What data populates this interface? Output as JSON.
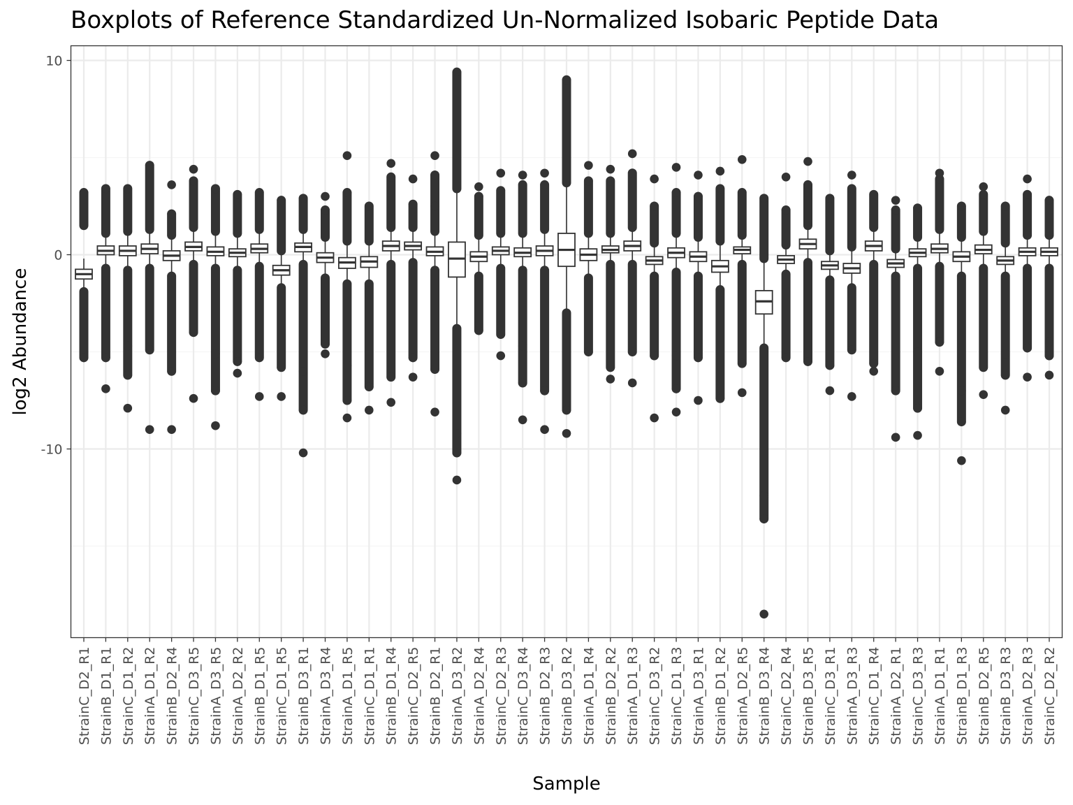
{
  "chart_data": {
    "type": "boxplot",
    "title": "Boxplots of Reference Standardized Un-Normalized Isobaric Peptide Data",
    "xlabel": "Sample",
    "ylabel": "log2 Abundance",
    "ylim": [
      -19.3,
      10.8
    ],
    "yticks": [
      10,
      0,
      -10
    ],
    "ytick_labels": [
      "10",
      "0",
      "-10"
    ],
    "grid": true,
    "legend": "none",
    "colors": {
      "box": "#333333",
      "grid_major": "#ebebeb",
      "grid_minor": "#f5f5f5",
      "panel_border": "#333333",
      "background": "#ffffff"
    },
    "categories": [
      "StrainC_D2_R1",
      "StrainB_D1_R1",
      "StrainC_D1_R2",
      "StrainA_D1_R2",
      "StrainB_D2_R4",
      "StrainC_D3_R5",
      "StrainA_D3_R5",
      "StrainA_D2_R2",
      "StrainB_D1_R5",
      "StrainC_D1_R5",
      "StrainB_D3_R1",
      "StrainA_D3_R4",
      "StrainA_D1_R5",
      "StrainC_D1_R1",
      "StrainB_D1_R4",
      "StrainC_D2_R5",
      "StrainB_D2_R1",
      "StrainA_D3_R2",
      "StrainA_D2_R4",
      "StrainC_D2_R3",
      "StrainC_D3_R4",
      "StrainB_D2_R3",
      "StrainB_D3_R2",
      "StrainA_D1_R4",
      "StrainB_D2_R2",
      "StrainA_D1_R3",
      "StrainC_D3_R2",
      "StrainC_D1_R3",
      "StrainA_D3_R1",
      "StrainB_D1_R2",
      "StrainA_D2_R5",
      "StrainB_D3_R4",
      "StrainC_D2_R4",
      "StrainB_D3_R5",
      "StrainC_D3_R1",
      "StrainA_D3_R3",
      "StrainC_D1_R4",
      "StrainA_D2_R1",
      "StrainC_D3_R3",
      "StrainA_D1_R1",
      "StrainB_D1_R3",
      "StrainB_D2_R5",
      "StrainB_D3_R3",
      "StrainA_D2_R3",
      "StrainC_D2_R2"
    ],
    "boxes": [
      {
        "q1": -1.25,
        "median": -1.0,
        "q3": -0.75,
        "whisker_low": -1.85,
        "whisker_high": -0.2,
        "outlier_high": [
          1.5,
          3.2
        ],
        "outlier_low": [
          -1.9,
          -5.3
        ]
      },
      {
        "q1": 0.0,
        "median": 0.2,
        "q3": 0.45,
        "whisker_low": -0.6,
        "whisker_high": 1.0,
        "outlier_high": [
          1.1,
          3.4
        ],
        "outlier_low": [
          -0.7,
          -5.3,
          -6.9
        ]
      },
      {
        "q1": -0.05,
        "median": 0.2,
        "q3": 0.45,
        "whisker_low": -0.7,
        "whisker_high": 1.1,
        "outlier_high": [
          1.2,
          3.4
        ],
        "outlier_low": [
          -0.8,
          -4.7,
          -6.2,
          -7.9
        ]
      },
      {
        "q1": 0.05,
        "median": 0.3,
        "q3": 0.55,
        "whisker_low": -0.6,
        "whisker_high": 1.2,
        "outlier_high": [
          1.3,
          4.6
        ],
        "outlier_low": [
          -0.7,
          -4.9,
          -9.0
        ]
      },
      {
        "q1": -0.3,
        "median": -0.05,
        "q3": 0.2,
        "whisker_low": -1.0,
        "whisker_high": 0.9,
        "outlier_high": [
          1.0,
          2.1,
          3.6
        ],
        "outlier_low": [
          -1.1,
          -6.0,
          -9.0
        ]
      },
      {
        "q1": 0.2,
        "median": 0.4,
        "q3": 0.65,
        "whisker_low": -0.4,
        "whisker_high": 1.3,
        "outlier_high": [
          1.4,
          3.8,
          4.4
        ],
        "outlier_low": [
          -0.5,
          -4.0,
          -7.4
        ]
      },
      {
        "q1": -0.05,
        "median": 0.15,
        "q3": 0.4,
        "whisker_low": -0.6,
        "whisker_high": 1.1,
        "outlier_high": [
          1.2,
          3.4
        ],
        "outlier_low": [
          -0.7,
          -5.1,
          -7.0,
          -8.8
        ]
      },
      {
        "q1": -0.1,
        "median": 0.1,
        "q3": 0.3,
        "whisker_low": -0.7,
        "whisker_high": 1.0,
        "outlier_high": [
          1.1,
          3.1
        ],
        "outlier_low": [
          -0.8,
          -5.5,
          -6.1
        ]
      },
      {
        "q1": 0.1,
        "median": 0.3,
        "q3": 0.55,
        "whisker_low": -0.5,
        "whisker_high": 1.2,
        "outlier_high": [
          1.3,
          3.2
        ],
        "outlier_low": [
          -0.6,
          -5.3,
          -7.3
        ]
      },
      {
        "q1": -1.05,
        "median": -0.8,
        "q3": -0.55,
        "whisker_low": -1.6,
        "whisker_high": 0.1,
        "outlier_high": [
          0.2,
          2.8
        ],
        "outlier_low": [
          -1.7,
          -5.8,
          -7.3
        ]
      },
      {
        "q1": 0.15,
        "median": 0.4,
        "q3": 0.6,
        "whisker_low": -0.4,
        "whisker_high": 1.2,
        "outlier_high": [
          1.3,
          2.9
        ],
        "outlier_low": [
          -0.5,
          -6.0,
          -8.0,
          -10.2
        ]
      },
      {
        "q1": -0.4,
        "median": -0.15,
        "q3": 0.1,
        "whisker_low": -1.1,
        "whisker_high": 0.8,
        "outlier_high": [
          0.9,
          2.3,
          3.0
        ],
        "outlier_low": [
          -1.2,
          -4.6,
          -5.1
        ]
      },
      {
        "q1": -0.7,
        "median": -0.4,
        "q3": -0.15,
        "whisker_low": -1.4,
        "whisker_high": 0.6,
        "outlier_high": [
          0.7,
          3.2,
          5.1
        ],
        "outlier_low": [
          -1.5,
          -5.7,
          -7.5,
          -8.4
        ]
      },
      {
        "q1": -0.65,
        "median": -0.35,
        "q3": -0.1,
        "whisker_low": -1.4,
        "whisker_high": 0.6,
        "outlier_high": [
          0.7,
          2.5
        ],
        "outlier_low": [
          -1.5,
          -6.8,
          -8.0
        ]
      },
      {
        "q1": 0.2,
        "median": 0.45,
        "q3": 0.7,
        "whisker_low": -0.4,
        "whisker_high": 1.3,
        "outlier_high": [
          1.4,
          4.0,
          4.7
        ],
        "outlier_low": [
          -0.5,
          -6.3,
          -7.6
        ]
      },
      {
        "q1": 0.25,
        "median": 0.45,
        "q3": 0.65,
        "whisker_low": -0.3,
        "whisker_high": 1.3,
        "outlier_high": [
          1.4,
          2.6,
          3.9
        ],
        "outlier_low": [
          -0.4,
          -5.3,
          -6.3
        ]
      },
      {
        "q1": -0.05,
        "median": 0.15,
        "q3": 0.4,
        "whisker_low": -0.7,
        "whisker_high": 1.1,
        "outlier_high": [
          1.2,
          2.5,
          4.1,
          5.1
        ],
        "outlier_low": [
          -0.8,
          -5.9,
          -8.1
        ]
      },
      {
        "q1": -1.15,
        "median": -0.2,
        "q3": 0.65,
        "whisker_low": -3.8,
        "whisker_high": 3.3,
        "outlier_high": [
          3.4,
          9.4
        ],
        "outlier_low": [
          -3.8,
          -9.2,
          -10.2,
          -11.6
        ]
      },
      {
        "q1": -0.35,
        "median": -0.1,
        "q3": 0.15,
        "whisker_low": -1.0,
        "whisker_high": 0.9,
        "outlier_high": [
          1.0,
          3.0,
          3.5
        ],
        "outlier_low": [
          -1.1,
          -3.9
        ]
      },
      {
        "q1": 0.0,
        "median": 0.2,
        "q3": 0.4,
        "whisker_low": -0.6,
        "whisker_high": 1.0,
        "outlier_high": [
          1.1,
          3.3,
          4.2
        ],
        "outlier_low": [
          -0.7,
          -4.1,
          -5.2
        ]
      },
      {
        "q1": -0.1,
        "median": 0.1,
        "q3": 0.35,
        "whisker_low": -0.7,
        "whisker_high": 1.0,
        "outlier_high": [
          1.1,
          3.6,
          4.1
        ],
        "outlier_low": [
          -0.8,
          -4.7,
          -6.6,
          -8.5
        ]
      },
      {
        "q1": -0.05,
        "median": 0.2,
        "q3": 0.45,
        "whisker_low": -0.7,
        "whisker_high": 1.2,
        "outlier_high": [
          1.3,
          3.6,
          4.2
        ],
        "outlier_low": [
          -0.8,
          -7.0,
          -9.0
        ]
      },
      {
        "q1": -0.6,
        "median": 0.25,
        "q3": 1.1,
        "whisker_low": -2.9,
        "whisker_high": 3.6,
        "outlier_high": [
          3.7,
          9.0
        ],
        "outlier_low": [
          -3.0,
          -8.0,
          -9.2
        ]
      },
      {
        "q1": -0.3,
        "median": 0.0,
        "q3": 0.3,
        "whisker_low": -1.1,
        "whisker_high": 1.0,
        "outlier_high": [
          1.1,
          3.8,
          4.6
        ],
        "outlier_low": [
          -1.2,
          -5.0
        ]
      },
      {
        "q1": 0.1,
        "median": 0.25,
        "q3": 0.45,
        "whisker_low": -0.4,
        "whisker_high": 1.0,
        "outlier_high": [
          1.1,
          3.8,
          4.4
        ],
        "outlier_low": [
          -0.5,
          -5.8,
          -6.4
        ]
      },
      {
        "q1": 0.2,
        "median": 0.45,
        "q3": 0.7,
        "whisker_low": -0.4,
        "whisker_high": 1.3,
        "outlier_high": [
          1.4,
          4.2,
          5.2
        ],
        "outlier_low": [
          -0.5,
          -5.0,
          -6.6
        ]
      },
      {
        "q1": -0.5,
        "median": -0.3,
        "q3": -0.1,
        "whisker_low": -1.0,
        "whisker_high": 0.5,
        "outlier_high": [
          0.6,
          2.5,
          3.9
        ],
        "outlier_low": [
          -1.1,
          -5.2,
          -8.4
        ]
      },
      {
        "q1": -0.15,
        "median": 0.1,
        "q3": 0.35,
        "whisker_low": -0.8,
        "whisker_high": 1.0,
        "outlier_high": [
          1.1,
          3.2,
          4.5
        ],
        "outlier_low": [
          -0.9,
          -5.2,
          -6.9,
          -8.1
        ]
      },
      {
        "q1": -0.35,
        "median": -0.1,
        "q3": 0.15,
        "whisker_low": -1.0,
        "whisker_high": 0.8,
        "outlier_high": [
          0.9,
          3.0,
          4.1
        ],
        "outlier_low": [
          -1.1,
          -5.3,
          -7.5
        ]
      },
      {
        "q1": -0.9,
        "median": -0.6,
        "q3": -0.3,
        "whisker_low": -1.7,
        "whisker_high": 0.6,
        "outlier_high": [
          0.7,
          3.4,
          4.3
        ],
        "outlier_low": [
          -1.8,
          -7.4
        ]
      },
      {
        "q1": 0.05,
        "median": 0.25,
        "q3": 0.4,
        "whisker_low": -0.4,
        "whisker_high": 0.9,
        "outlier_high": [
          1.0,
          3.2,
          4.9
        ],
        "outlier_low": [
          -0.5,
          -5.6,
          -7.1
        ]
      },
      {
        "q1": -3.05,
        "median": -2.4,
        "q3": -1.85,
        "whisker_low": -4.7,
        "whisker_high": -0.3,
        "outlier_high": [
          -0.2,
          2.9
        ],
        "outlier_low": [
          -4.8,
          -12.4,
          -13.6,
          -18.5
        ]
      },
      {
        "q1": -0.45,
        "median": -0.25,
        "q3": -0.05,
        "whisker_low": -0.9,
        "whisker_high": 0.4,
        "outlier_high": [
          0.5,
          2.3,
          4.0
        ],
        "outlier_low": [
          -1.0,
          -5.3
        ]
      },
      {
        "q1": 0.3,
        "median": 0.55,
        "q3": 0.8,
        "whisker_low": -0.3,
        "whisker_high": 1.4,
        "outlier_high": [
          1.5,
          3.6,
          4.8
        ],
        "outlier_low": [
          -0.4,
          -5.5
        ]
      },
      {
        "q1": -0.75,
        "median": -0.55,
        "q3": -0.35,
        "whisker_low": -1.2,
        "whisker_high": 0.1,
        "outlier_high": [
          0.2,
          2.9
        ],
        "outlier_low": [
          -1.3,
          -5.7,
          -7.0
        ]
      },
      {
        "q1": -0.95,
        "median": -0.7,
        "q3": -0.45,
        "whisker_low": -1.6,
        "whisker_high": 0.3,
        "outlier_high": [
          0.4,
          3.4,
          4.1
        ],
        "outlier_low": [
          -1.7,
          -4.9,
          -7.3
        ]
      },
      {
        "q1": 0.2,
        "median": 0.45,
        "q3": 0.7,
        "whisker_low": -0.4,
        "whisker_high": 1.3,
        "outlier_high": [
          1.4,
          3.1
        ],
        "outlier_low": [
          -0.5,
          -5.6,
          -6.0
        ]
      },
      {
        "q1": -0.65,
        "median": -0.45,
        "q3": -0.25,
        "whisker_low": -1.0,
        "whisker_high": 0.2,
        "outlier_high": [
          0.3,
          2.3,
          2.8
        ],
        "outlier_low": [
          -1.1,
          -7.0,
          -9.4
        ]
      },
      {
        "q1": -0.1,
        "median": 0.1,
        "q3": 0.3,
        "whisker_low": -0.6,
        "whisker_high": 0.8,
        "outlier_high": [
          0.9,
          2.4
        ],
        "outlier_low": [
          -0.7,
          -5.0,
          -7.9,
          -9.3
        ]
      },
      {
        "q1": 0.1,
        "median": 0.3,
        "q3": 0.55,
        "whisker_low": -0.5,
        "whisker_high": 1.2,
        "outlier_high": [
          1.3,
          3.9,
          4.2
        ],
        "outlier_low": [
          -0.6,
          -4.5,
          -6.0
        ]
      },
      {
        "q1": -0.35,
        "median": -0.1,
        "q3": 0.15,
        "whisker_low": -1.0,
        "whisker_high": 0.8,
        "outlier_high": [
          0.9,
          2.5
        ],
        "outlier_low": [
          -1.1,
          -7.0,
          -8.6,
          -10.6
        ]
      },
      {
        "q1": 0.05,
        "median": 0.25,
        "q3": 0.5,
        "whisker_low": -0.6,
        "whisker_high": 1.1,
        "outlier_high": [
          1.2,
          3.1,
          3.5
        ],
        "outlier_low": [
          -0.7,
          -5.8,
          -7.2
        ]
      },
      {
        "q1": -0.5,
        "median": -0.3,
        "q3": -0.1,
        "whisker_low": -1.0,
        "whisker_high": 0.5,
        "outlier_high": [
          0.6,
          2.5
        ],
        "outlier_low": [
          -1.1,
          -5.1,
          -6.2,
          -8.0
        ]
      },
      {
        "q1": -0.05,
        "median": 0.15,
        "q3": 0.35,
        "whisker_low": -0.6,
        "whisker_high": 0.9,
        "outlier_high": [
          1.0,
          3.1,
          3.9
        ],
        "outlier_low": [
          -0.7,
          -4.8,
          -6.3
        ]
      },
      {
        "q1": -0.05,
        "median": 0.15,
        "q3": 0.35,
        "whisker_low": -0.6,
        "whisker_high": 0.9,
        "outlier_high": [
          1.0,
          2.8
        ],
        "outlier_low": [
          -0.7,
          -4.5,
          -5.2,
          -6.2
        ]
      }
    ]
  }
}
